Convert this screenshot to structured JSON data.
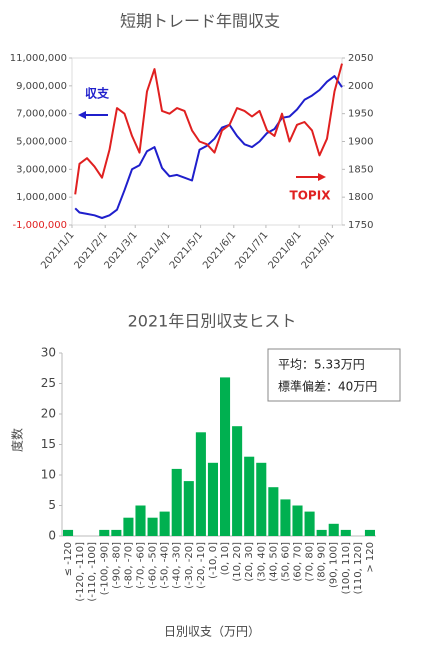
{
  "chart_data": [
    {
      "type": "line",
      "title": "短期トレード年間収支",
      "x": [
        "2021/1/4",
        "2021/1/8",
        "2021/1/15",
        "2021/1/22",
        "2021/1/29",
        "2021/2/5",
        "2021/2/12",
        "2021/2/19",
        "2021/2/26",
        "2021/3/5",
        "2021/3/12",
        "2021/3/19",
        "2021/3/26",
        "2021/4/2",
        "2021/4/9",
        "2021/4/16",
        "2021/4/23",
        "2021/4/30",
        "2021/5/7",
        "2021/5/14",
        "2021/5/21",
        "2021/5/28",
        "2021/6/4",
        "2021/6/11",
        "2021/6/18",
        "2021/6/25",
        "2021/7/2",
        "2021/7/9",
        "2021/7/16",
        "2021/7/23",
        "2021/7/30",
        "2021/8/6",
        "2021/8/13",
        "2021/8/20",
        "2021/8/27",
        "2021/9/3",
        "2021/9/10"
      ],
      "xlim": [
        "2021/1/1",
        "2021/9/10"
      ],
      "xticks": [
        "2021/1/1",
        "2021/2/1",
        "2021/3/1",
        "2021/4/1",
        "2021/5/1",
        "2021/6/1",
        "2021/7/1",
        "2021/8/1",
        "2021/9/1"
      ],
      "series": [
        {
          "name": "収支",
          "color": "#1f1fcc",
          "values": [
            200000,
            -100000,
            -200000,
            -300000,
            -500000,
            -300000,
            100000,
            1500000,
            3000000,
            3300000,
            4300000,
            4600000,
            3100000,
            2500000,
            2600000,
            2400000,
            2200000,
            4400000,
            4700000,
            5200000,
            6000000,
            6200000,
            5400000,
            4800000,
            4600000,
            5000000,
            5600000,
            5900000,
            6700000,
            6800000,
            7300000,
            8000000,
            8300000,
            8700000,
            9300000,
            9700000,
            8900000
          ]
        },
        {
          "name": "TOPIX",
          "color": "#e02020",
          "axis": "y2",
          "values": [
            1805,
            1860,
            1870,
            1855,
            1835,
            1885,
            1960,
            1950,
            1910,
            1880,
            1990,
            2030,
            1955,
            1950,
            1960,
            1955,
            1920,
            1900,
            1895,
            1880,
            1920,
            1930,
            1960,
            1955,
            1945,
            1955,
            1920,
            1910,
            1950,
            1900,
            1930,
            1935,
            1920,
            1875,
            1905,
            1990,
            2040
          ]
        }
      ],
      "ylim": [
        -1000000,
        11000000
      ],
      "yticks": [
        {
          "value": -1000000,
          "label": "-1,000,000"
        },
        {
          "value": 1000000,
          "label": "1,000,000"
        },
        {
          "value": 3000000,
          "label": "3,000,000"
        },
        {
          "value": 5000000,
          "label": "5,000,000"
        },
        {
          "value": 7000000,
          "label": "7,000,000"
        },
        {
          "value": 9000000,
          "label": "9,000,000"
        },
        {
          "value": 11000000,
          "label": "11,000,000"
        }
      ],
      "y2lim": [
        1750,
        2050
      ],
      "y2ticks": [
        1750,
        1800,
        1850,
        1900,
        1950,
        2000,
        2050
      ]
    },
    {
      "type": "bar",
      "title": "2021年日別収支ヒスト",
      "color": "#00b050",
      "categories": [
        "≤ -120",
        "(-120, -110]",
        "(-110, -100]",
        "(-100, -90]",
        "(-90, -80]",
        "(-80, -70]",
        "(-70, -60]",
        "(-60, -50]",
        "(-50, -40]",
        "(-40, -30]",
        "(-30, -20]",
        "(-20, -10]",
        "(-10, 0]",
        "(0, 10]",
        "(10, 20]",
        "(20, 30]",
        "(30, 40]",
        "(40, 50]",
        "(50, 60]",
        "(60, 70]",
        "(70, 80]",
        "(80, 90]",
        "(90, 100]",
        "(100, 110]",
        "(110, 120]",
        "> 120"
      ],
      "values": [
        1,
        0,
        0,
        1,
        1,
        3,
        5,
        3,
        4,
        11,
        9,
        17,
        12,
        26,
        18,
        13,
        12,
        8,
        6,
        5,
        4,
        1,
        2,
        1,
        0,
        1
      ],
      "ylim": [
        0,
        30
      ],
      "yticks": [
        0,
        5,
        10,
        15,
        20,
        25,
        30
      ],
      "x_label": "日別収支（万円）",
      "y_label": "度数",
      "annotations": [
        "平均：5.33万円",
        "標準偏差：40万円"
      ]
    }
  ]
}
